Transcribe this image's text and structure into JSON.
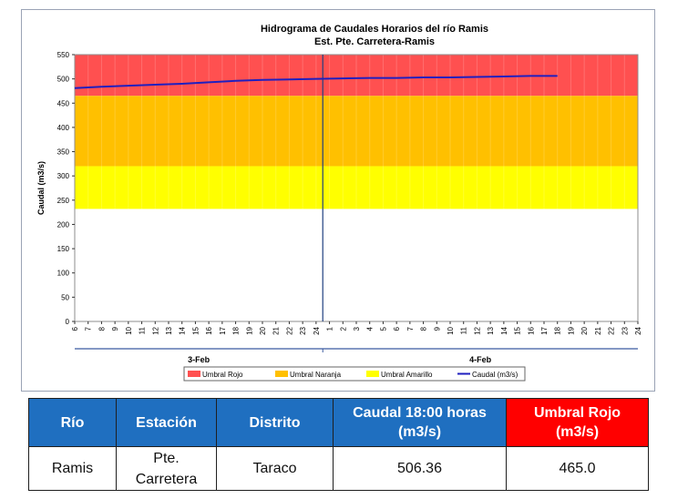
{
  "chart_data": {
    "type": "line",
    "title": "Hidrograma de Caudales Horarios del río Ramis",
    "subtitle": "Est. Pte. Carretera-Ramis",
    "ylabel": "Caudal  (m3/s)",
    "ylim": [
      0,
      550
    ],
    "yticks": [
      0,
      50,
      100,
      150,
      200,
      250,
      300,
      350,
      400,
      450,
      500,
      550
    ],
    "x_tick_labels": [
      "6",
      "7",
      "8",
      "9",
      "10",
      "11",
      "12",
      "13",
      "14",
      "15",
      "16",
      "17",
      "18",
      "19",
      "20",
      "21",
      "22",
      "23",
      "24",
      "1",
      "2",
      "3",
      "4",
      "5",
      "6",
      "7",
      "8",
      "9",
      "10",
      "11",
      "12",
      "13",
      "14",
      "15",
      "16",
      "17",
      "18",
      "19",
      "20",
      "21",
      "22",
      "23",
      "24"
    ],
    "day_labels": [
      "3-Feb",
      "4-Feb"
    ],
    "bands": [
      {
        "name": "Umbral Rojo",
        "from": 465,
        "to": 550,
        "color": "#ff5050"
      },
      {
        "name": "Umbral Naranja",
        "from": 320,
        "to": 465,
        "color": "#ffc000"
      },
      {
        "name": "Umbral Amarillo",
        "from": 232,
        "to": 320,
        "color": "#ffff00"
      }
    ],
    "series": [
      {
        "name": "Caudal (m3/s)",
        "color": "#1f1fbf",
        "x": [
          0,
          2,
          4,
          6,
          8,
          10,
          12,
          14,
          16,
          18,
          20,
          22,
          24,
          26,
          28,
          30,
          32,
          34,
          36
        ],
        "values": [
          481,
          484,
          486,
          488,
          490,
          493,
          496,
          498,
          499,
          500,
          501,
          502,
          502,
          503,
          503,
          504,
          505,
          506,
          506
        ]
      }
    ],
    "marker_line_index": 19,
    "legend": [
      "Umbral Rojo",
      "Umbral Naranja",
      "Umbral Amarillo",
      "Caudal (m3/s)"
    ],
    "legend_position": "bottom",
    "grid": true
  },
  "table": {
    "headers": [
      "Río",
      "Estación",
      "Distrito",
      "Caudal  18:00 horas (m3/s)",
      "Umbral Rojo (m3/s)"
    ],
    "row": [
      "Ramis",
      "Pte. Carretera",
      "Taraco",
      "506.36",
      "465.0"
    ]
  }
}
